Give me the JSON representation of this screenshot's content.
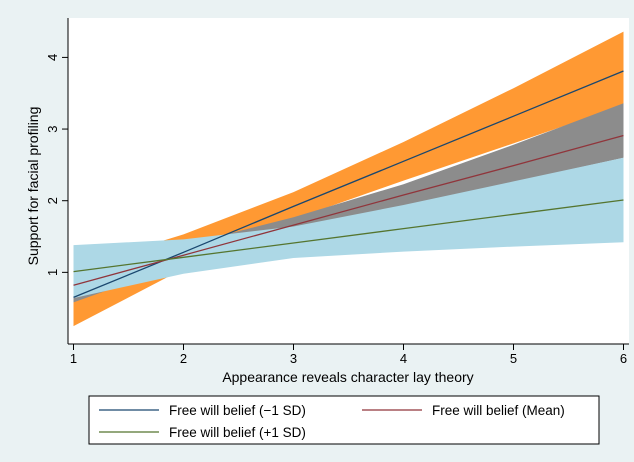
{
  "chart_data": {
    "type": "line",
    "title": "",
    "xlabel": "Appearance reveals character lay theory",
    "ylabel": "Support for facial profiling",
    "xlim": [
      0.95,
      6.05
    ],
    "ylim": [
      0.0,
      4.55
    ],
    "xticks": [
      1,
      2,
      3,
      4,
      5,
      6
    ],
    "yticks": [
      1,
      2,
      3,
      4
    ],
    "grid": false,
    "legend_position": "bottom",
    "x": [
      1,
      2,
      3,
      4,
      5,
      6
    ],
    "series": [
      {
        "name": "Free will belief (−1 SD)",
        "color": "#1a476f",
        "values": [
          0.65,
          1.28,
          1.92,
          2.55,
          3.18,
          3.81
        ],
        "ci_color": "#ff9933",
        "ci_lower": [
          0.25,
          1.05,
          1.74,
          2.28,
          2.8,
          3.33
        ],
        "ci_upper": [
          1.06,
          1.53,
          2.12,
          2.82,
          3.57,
          4.36
        ]
      },
      {
        "name": "Free will belief (Mean)",
        "color": "#90353b",
        "values": [
          0.82,
          1.24,
          1.66,
          2.08,
          2.49,
          2.91
        ],
        "ci_color": "#8c8c8c",
        "ci_lower": [
          0.58,
          1.13,
          1.57,
          1.93,
          2.26,
          2.6
        ],
        "ci_upper": [
          1.09,
          1.38,
          1.77,
          2.23,
          2.78,
          3.36
        ]
      },
      {
        "name": "Free will belief (+1 SD)",
        "color": "#55752f",
        "values": [
          1.01,
          1.21,
          1.41,
          1.61,
          1.81,
          2.01
        ],
        "ci_color": "#add8e6",
        "ci_lower": [
          0.64,
          0.98,
          1.2,
          1.29,
          1.36,
          1.42
        ],
        "ci_upper": [
          1.38,
          1.46,
          1.64,
          1.94,
          2.27,
          2.6
        ]
      }
    ]
  }
}
